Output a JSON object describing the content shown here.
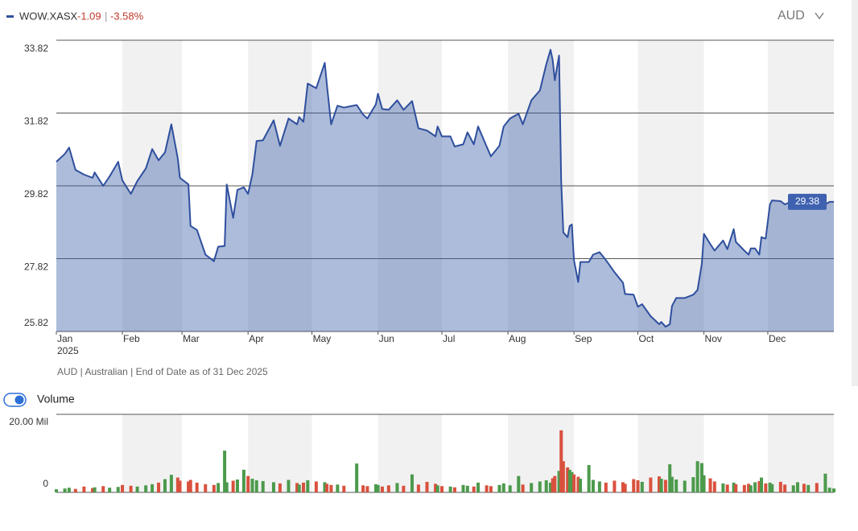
{
  "header": {
    "ticker": "WOW.XASX",
    "change": "-1.09",
    "change_pct": "-3.58%",
    "currency": "AUD"
  },
  "footer_note": "AUD | Australian | End of Date as of 31 Dec 2025",
  "volume_toggle": "Volume",
  "chart_data": [
    {
      "type": "area",
      "x_year": "2025",
      "color": "#2f4f9e",
      "area_color": "#3c5fa8",
      "band_color": "#f1f1f1",
      "xlim": [
        0,
        365
      ],
      "xticks": [
        {
          "value": 0,
          "label": "Jan"
        },
        {
          "value": 31,
          "label": "Feb"
        },
        {
          "value": 59,
          "label": "Mar"
        },
        {
          "value": 90,
          "label": "Apr"
        },
        {
          "value": 120,
          "label": "May"
        },
        {
          "value": 151,
          "label": "Jun"
        },
        {
          "value": 181,
          "label": "Jul"
        },
        {
          "value": 212,
          "label": "Aug"
        },
        {
          "value": 243,
          "label": "Sep"
        },
        {
          "value": 273,
          "label": "Oct"
        },
        {
          "value": 304,
          "label": "Nov"
        },
        {
          "value": 334,
          "label": "Dec"
        }
      ],
      "ylim": [
        25.82,
        33.82
      ],
      "yticks": [
        25.82,
        27.82,
        29.82,
        31.82,
        33.82
      ],
      "grid": true,
      "x": [
        0,
        4,
        6,
        9,
        13,
        17,
        18,
        22,
        25,
        29,
        31,
        35,
        38,
        42,
        45,
        48,
        51,
        54,
        57,
        58,
        62,
        63,
        66,
        70,
        74,
        76,
        79,
        80,
        83,
        85,
        88,
        90,
        92,
        94,
        97,
        102,
        105,
        109,
        113,
        114,
        116,
        118,
        122,
        126,
        127,
        129,
        132,
        135,
        141,
        144,
        146,
        150,
        151,
        153,
        156,
        160,
        163,
        167,
        170,
        174,
        178,
        179,
        181,
        185,
        187,
        191,
        193,
        196,
        198,
        202,
        204,
        208,
        210,
        213,
        217,
        219,
        223,
        227,
        230,
        232,
        233,
        234,
        236,
        237,
        238,
        240,
        241,
        242,
        243,
        245,
        246,
        250,
        252,
        255,
        258,
        262,
        266,
        267,
        271,
        273,
        275,
        279,
        283,
        284,
        286,
        288,
        289,
        291,
        295,
        299,
        301,
        303,
        304,
        307,
        309,
        313,
        315,
        318,
        319,
        323,
        325,
        326,
        328,
        330,
        331,
        333,
        335,
        336,
        340,
        342,
        346,
        348,
        351,
        353,
        357,
        361,
        363,
        365
      ],
      "values": [
        30.48,
        30.7,
        30.87,
        30.26,
        30.13,
        30.04,
        30.19,
        29.82,
        30.08,
        30.48,
        29.97,
        29.6,
        29.95,
        30.3,
        30.83,
        30.52,
        30.74,
        31.51,
        30.57,
        30.04,
        29.86,
        28.72,
        28.61,
        27.93,
        27.75,
        28.15,
        28.17,
        29.86,
        28.94,
        29.71,
        29.78,
        29.6,
        30.13,
        31.05,
        31.07,
        31.62,
        30.92,
        31.67,
        31.51,
        31.71,
        31.58,
        32.63,
        32.5,
        33.2,
        32.61,
        31.51,
        32.02,
        31.97,
        32.04,
        31.78,
        31.67,
        32.06,
        32.35,
        31.93,
        31.91,
        32.17,
        31.91,
        32.15,
        31.4,
        31.34,
        31.18,
        31.45,
        31.18,
        31.18,
        30.9,
        30.96,
        31.29,
        30.96,
        31.45,
        30.9,
        30.63,
        30.92,
        31.45,
        31.67,
        31.8,
        31.51,
        32.17,
        32.44,
        33.16,
        33.56,
        33.27,
        32.72,
        33.4,
        29.97,
        28.54,
        28.41,
        28.72,
        28.76,
        27.78,
        27.18,
        27.73,
        27.73,
        27.93,
        28.0,
        27.78,
        27.45,
        27.16,
        26.85,
        26.83,
        26.5,
        26.57,
        26.24,
        26.02,
        26.08,
        25.95,
        26.02,
        26.52,
        26.74,
        26.74,
        26.83,
        26.96,
        27.67,
        28.5,
        28.22,
        28.04,
        28.32,
        28.08,
        28.63,
        28.28,
        28.04,
        27.93,
        28.1,
        28.1,
        27.93,
        28.41,
        28.37,
        29.31,
        29.42,
        29.4,
        29.31,
        29.42,
        29.56,
        29.31,
        29.49,
        29.31,
        29.31,
        29.38,
        29.38
      ]
    },
    {
      "type": "bar",
      "up_color": "#4c9a4c",
      "down_color": "#d9513e",
      "xlim": [
        0,
        365
      ],
      "ylim": [
        0,
        20
      ],
      "yticks": [
        0,
        {
          "value": 20,
          "label": "20.00 Mil"
        }
      ],
      "grid": true,
      "x": [
        0,
        4,
        6,
        9,
        13,
        17,
        18,
        22,
        25,
        29,
        31,
        35,
        38,
        42,
        45,
        48,
        51,
        54,
        57,
        58,
        62,
        63,
        66,
        70,
        74,
        76,
        79,
        80,
        83,
        85,
        88,
        90,
        92,
        94,
        97,
        102,
        105,
        109,
        113,
        114,
        116,
        118,
        122,
        126,
        127,
        129,
        132,
        135,
        141,
        144,
        146,
        150,
        151,
        153,
        156,
        160,
        163,
        167,
        170,
        174,
        178,
        179,
        181,
        185,
        187,
        191,
        193,
        196,
        198,
        202,
        204,
        208,
        210,
        213,
        217,
        219,
        223,
        227,
        230,
        232,
        233,
        234,
        236,
        237,
        238,
        240,
        241,
        242,
        243,
        245,
        246,
        250,
        252,
        255,
        258,
        262,
        266,
        267,
        271,
        273,
        275,
        279,
        283,
        284,
        286,
        288,
        289,
        291,
        295,
        299,
        301,
        303,
        304,
        307,
        309,
        313,
        315,
        318,
        319,
        323,
        325,
        326,
        328,
        330,
        331,
        333,
        335,
        336,
        340,
        342,
        346,
        348,
        351,
        353,
        357,
        361,
        363,
        365
      ],
      "values": [
        0.8,
        1.0,
        1.2,
        0.9,
        1.5,
        1.1,
        1.3,
        1.6,
        1.2,
        1.4,
        1.9,
        1.7,
        1.5,
        1.8,
        2.1,
        2.5,
        3.4,
        4.5,
        3.8,
        3.0,
        2.8,
        3.2,
        2.5,
        2.1,
        1.9,
        2.4,
        10.7,
        2.6,
        3.0,
        3.3,
        5.8,
        4.2,
        3.5,
        3.1,
        2.9,
        2.6,
        2.3,
        3.2,
        2.4,
        2.0,
        2.5,
        3.1,
        2.8,
        2.6,
        2.2,
        1.9,
        2.0,
        1.7,
        7.4,
        1.8,
        1.6,
        2.1,
        1.9,
        1.5,
        1.8,
        2.4,
        1.7,
        4.6,
        2.0,
        2.7,
        2.2,
        1.8,
        1.6,
        1.5,
        1.3,
        1.9,
        1.7,
        1.5,
        2.5,
        1.8,
        1.6,
        1.9,
        2.3,
        1.8,
        4.2,
        2.0,
        2.4,
        2.8,
        3.1,
        2.5,
        3.6,
        4.2,
        5.5,
        15.9,
        8.0,
        6.4,
        5.8,
        5.2,
        4.6,
        4.0,
        3.5,
        7.0,
        3.2,
        2.8,
        2.5,
        3.0,
        2.6,
        2.2,
        3.4,
        3.1,
        2.7,
        3.8,
        4.1,
        3.5,
        3.2,
        7.2,
        4.0,
        3.3,
        3.0,
        3.9,
        8.0,
        7.5,
        4.4,
        3.6,
        2.8,
        2.3,
        2.0,
        2.5,
        2.1,
        1.9,
        2.2,
        1.8,
        2.6,
        2.9,
        3.8,
        2.3,
        2.5,
        2.1,
        2.7,
        2.0,
        1.8,
        2.6,
        2.2,
        1.9,
        2.4,
        4.8,
        1.2,
        1.0
      ]
    }
  ]
}
